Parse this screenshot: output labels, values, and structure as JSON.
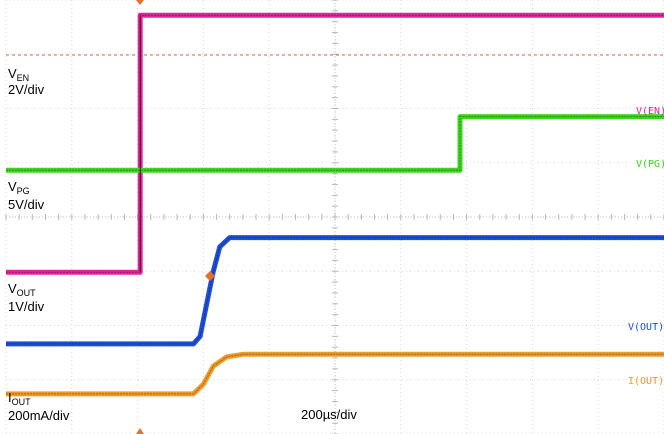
{
  "chart_data": {
    "type": "line",
    "timebase": "200µs/div",
    "grid": true,
    "x_divisions": 10,
    "y_divisions": 8,
    "series": [
      {
        "name": "EN",
        "tag": "V(EN)",
        "scale": "2V/div",
        "color": "#e6239b",
        "points": [
          [
            0,
            2.98
          ],
          [
            2.04,
            2.98
          ],
          [
            2.04,
            7.72
          ],
          [
            10,
            7.72
          ]
        ]
      },
      {
        "name": "PG",
        "tag": "V(PG)",
        "scale": "5V/div",
        "color": "#3cd61e",
        "points": [
          [
            0,
            4.86
          ],
          [
            6.9,
            4.86
          ],
          [
            6.9,
            5.85
          ],
          [
            10,
            5.85
          ]
        ]
      },
      {
        "name": "OUT",
        "tag": "V(OUT)",
        "scale": "1V/div",
        "color": "#1f4fd6",
        "points": [
          [
            0,
            1.66
          ],
          [
            2.85,
            1.66
          ],
          [
            2.95,
            1.8
          ],
          [
            3.05,
            2.4
          ],
          [
            3.15,
            3.0
          ],
          [
            3.25,
            3.45
          ],
          [
            3.4,
            3.62
          ],
          [
            10,
            3.62
          ]
        ]
      },
      {
        "name": "IOUT",
        "tag": "I(OUT)",
        "scale": "200mA/div",
        "color": "#f09a28",
        "points": [
          [
            0,
            0.74
          ],
          [
            2.85,
            0.74
          ],
          [
            3.0,
            0.92
          ],
          [
            3.15,
            1.25
          ],
          [
            3.35,
            1.42
          ],
          [
            3.6,
            1.47
          ],
          [
            10,
            1.47
          ]
        ]
      }
    ]
  },
  "labels": {
    "en": {
      "main": "V",
      "sub": "EN",
      "scale": "2V/div"
    },
    "pg": {
      "main": "V",
      "sub": "PG",
      "scale": "5V/div"
    },
    "out": {
      "main": "V",
      "sub": "OUT",
      "scale": "1V/div"
    },
    "iout": {
      "main": "I",
      "sub": "OUT",
      "scale": "200mA/div"
    }
  },
  "tags": {
    "en": "V(EN)",
    "pg": "V(PG)",
    "out": "V(OUT)",
    "iout": "I(OUT)"
  },
  "timebase": "200µs/div"
}
